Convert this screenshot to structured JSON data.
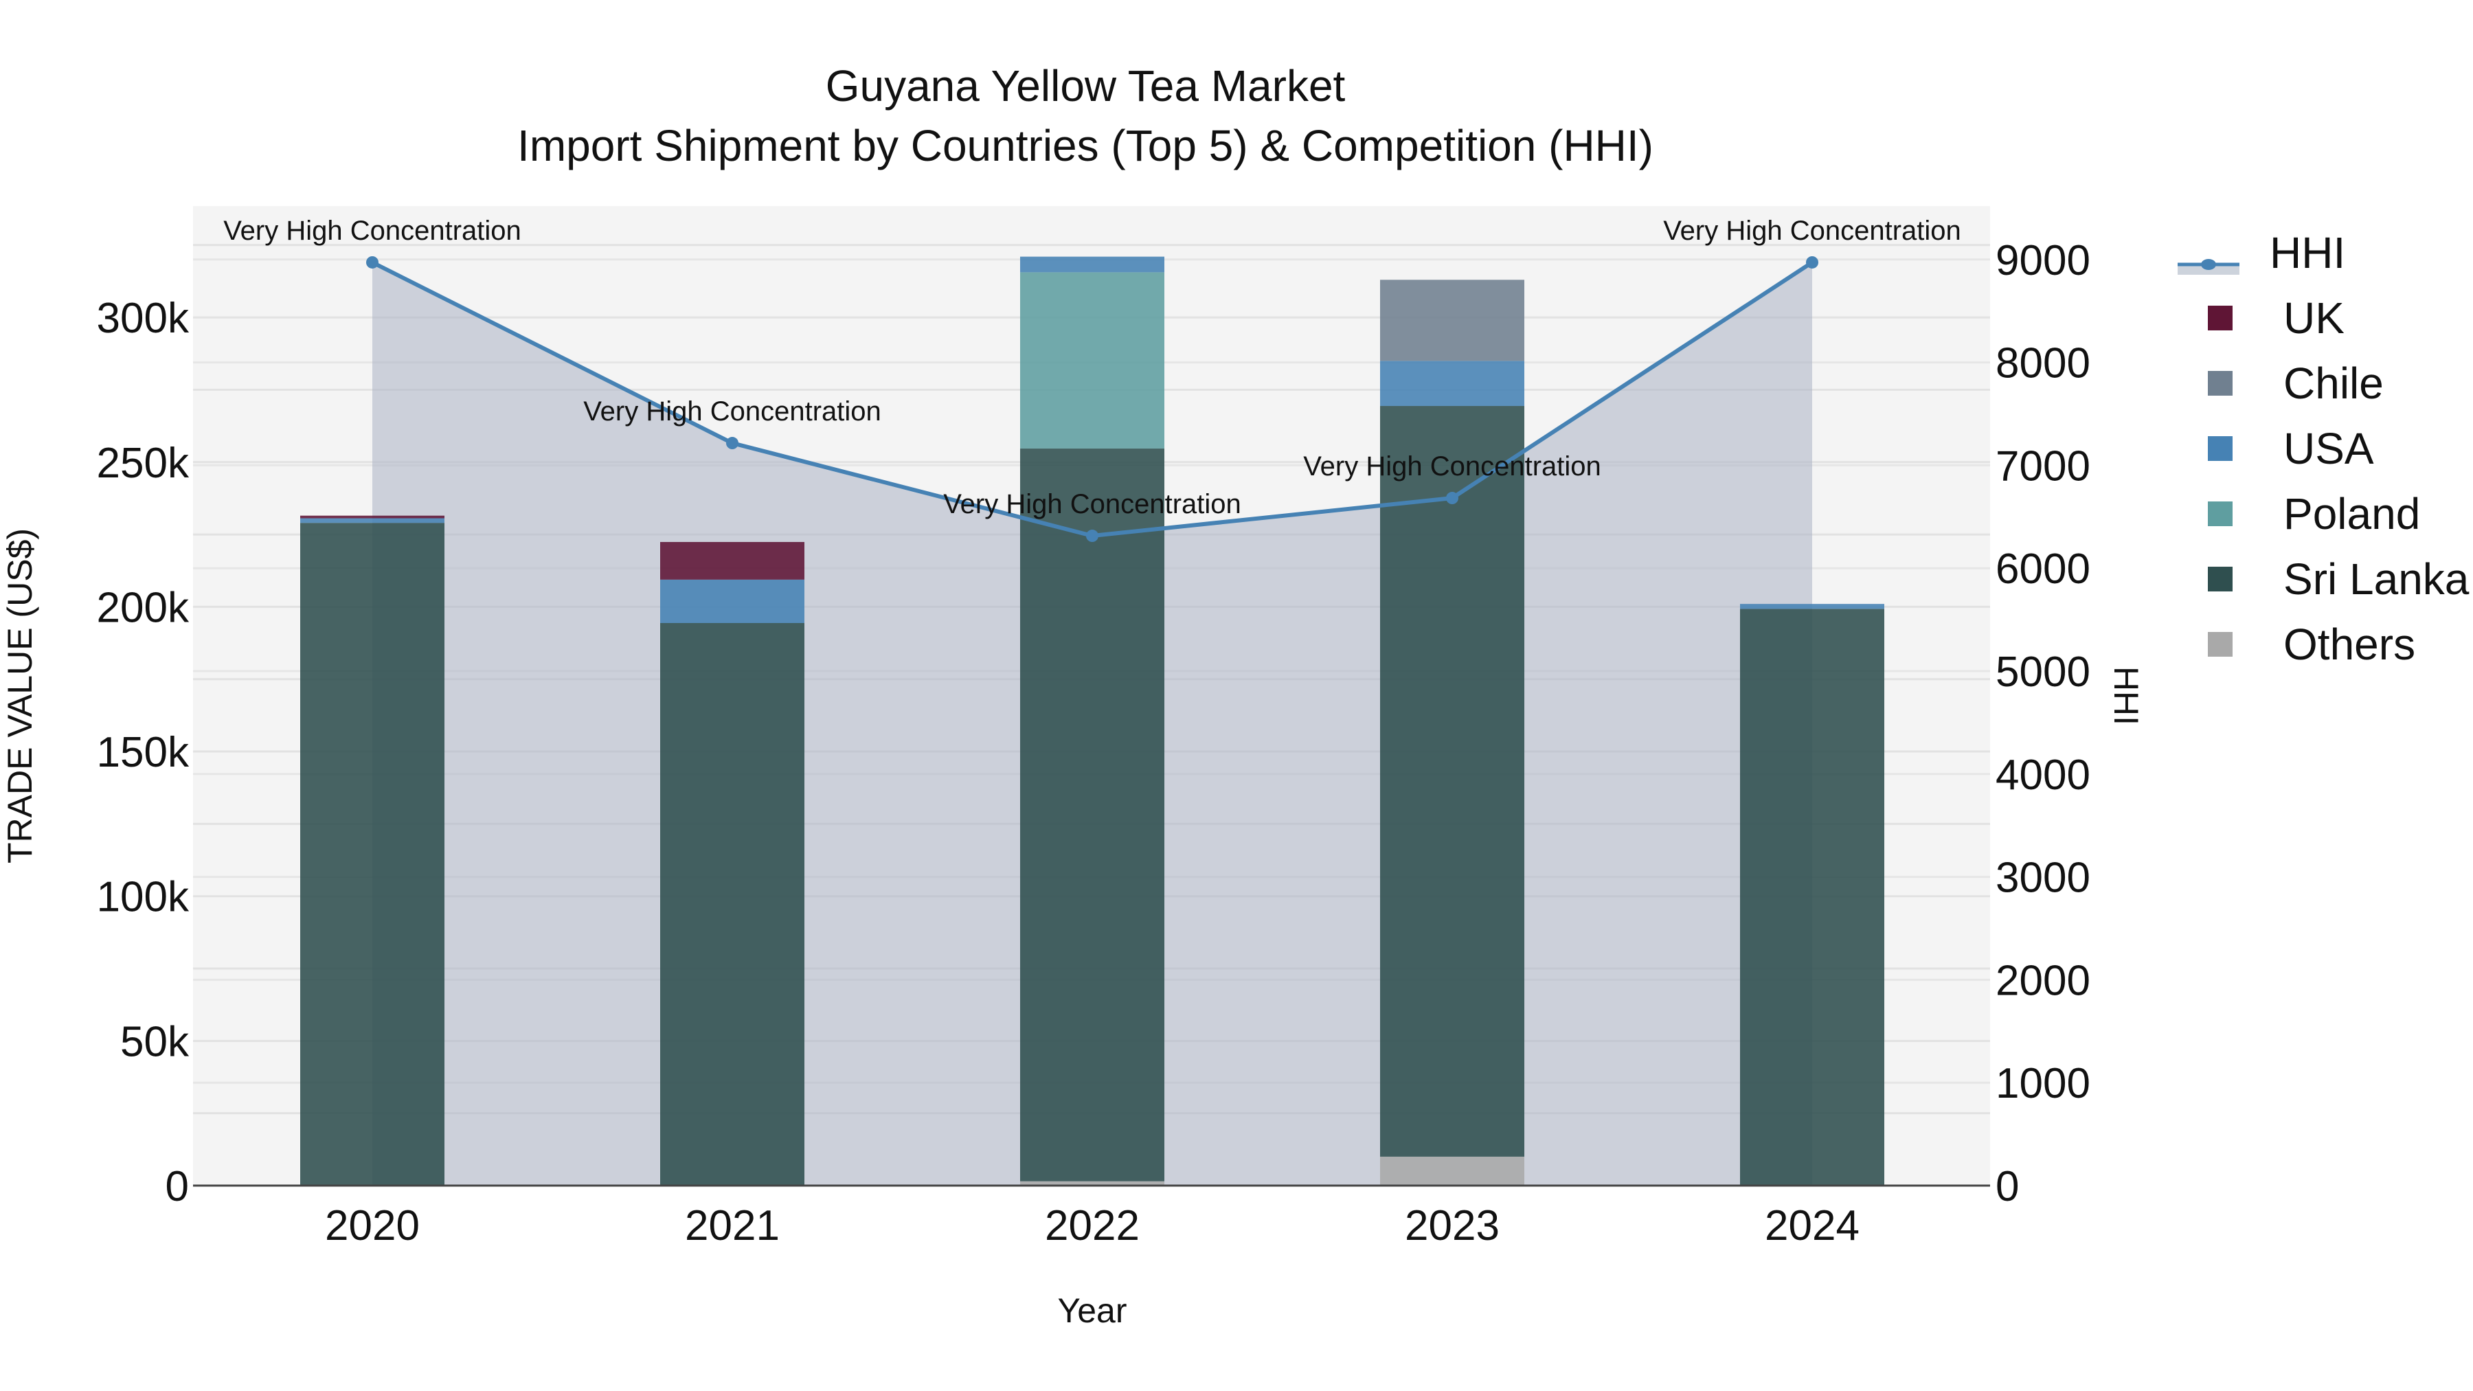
{
  "title": {
    "line1": "Guyana Yellow Tea Market",
    "line2": "Import Shipment by Countries (Top 5) & Competition (HHI)"
  },
  "axes": {
    "xlabel": "Year",
    "ylabel_left": "TRADE VALUE (US$)",
    "ylabel_right": "HHI",
    "left_ticks": [
      "0",
      "50k",
      "100k",
      "150k",
      "200k",
      "250k",
      "300k"
    ],
    "right_ticks": [
      "0",
      "1000",
      "2000",
      "3000",
      "4000",
      "5000",
      "6000",
      "7000",
      "8000",
      "9000"
    ],
    "x_ticks": [
      "2020",
      "2021",
      "2022",
      "2023",
      "2024"
    ]
  },
  "legend": [
    {
      "name": "HHI",
      "color": "#4682b4",
      "type": "line"
    },
    {
      "name": "UK",
      "color": "#5f1535",
      "type": "bar"
    },
    {
      "name": "Chile",
      "color": "#708090",
      "type": "bar"
    },
    {
      "name": "USA",
      "color": "#4682b4",
      "type": "bar"
    },
    {
      "name": "Poland",
      "color": "#5f9ea0",
      "type": "bar"
    },
    {
      "name": "Sri Lanka",
      "color": "#2f4f4f",
      "type": "bar"
    },
    {
      "name": "Others",
      "color": "#a9a9a9",
      "type": "bar"
    }
  ],
  "annotations": [
    "Very High Concentration",
    "Very High Concentration",
    "Very High Concentration",
    "Very High Concentration",
    "Very High Concentration"
  ],
  "chart_data": {
    "type": "bar",
    "title": "Guyana Yellow Tea Market — Import Shipment by Countries (Top 5) & Competition (HHI)",
    "xlabel": "Year",
    "ylabel": "TRADE VALUE (US$)",
    "y2label": "HHI",
    "ylim": [
      0,
      330000
    ],
    "y2lim": [
      0,
      9500
    ],
    "stacked": true,
    "grid": true,
    "legend_position": "right",
    "categories": [
      "2020",
      "2021",
      "2022",
      "2023",
      "2024"
    ],
    "series": [
      {
        "name": "Others",
        "color": "#a9a9a9",
        "values": [
          300,
          0,
          1500,
          10000,
          0
        ]
      },
      {
        "name": "Sri Lanka",
        "color": "#2f4f4f",
        "values": [
          228700,
          194400,
          253200,
          259400,
          199300
        ]
      },
      {
        "name": "Poland",
        "color": "#5f9ea0",
        "values": [
          0,
          0,
          60900,
          0,
          0
        ]
      },
      {
        "name": "USA",
        "color": "#4682b4",
        "values": [
          1600,
          15000,
          5400,
          15600,
          1700
        ]
      },
      {
        "name": "Chile",
        "color": "#708090",
        "values": [
          0,
          0,
          0,
          28000,
          0
        ]
      },
      {
        "name": "UK",
        "color": "#5f1535",
        "values": [
          900,
          13000,
          0,
          0,
          0
        ]
      }
    ],
    "line_series": {
      "name": "HHI",
      "axis": "y2",
      "color": "#4682b4",
      "fill": "tozeroy",
      "values": [
        8972,
        7216,
        6315,
        6682,
        8972
      ],
      "labels": [
        "Very High Concentration",
        "Very High Concentration",
        "Very High Concentration",
        "Very High Concentration",
        "Very High Concentration"
      ]
    }
  }
}
